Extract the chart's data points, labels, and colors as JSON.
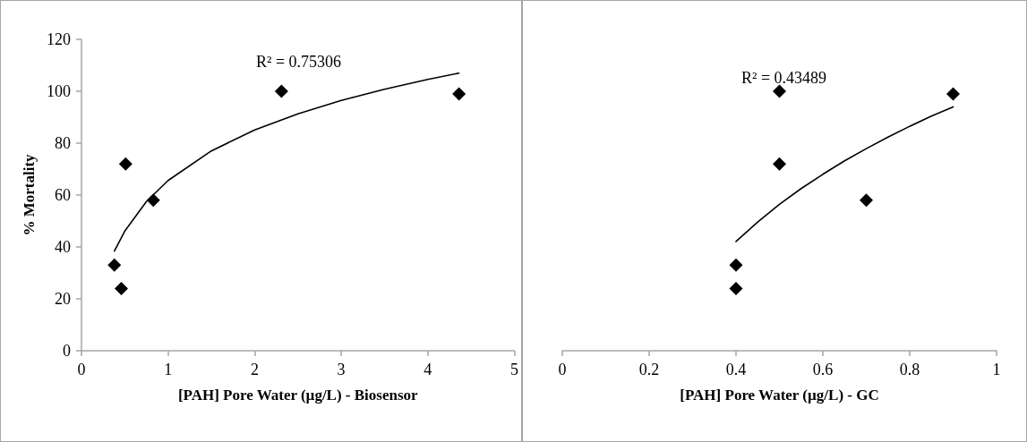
{
  "chart_data": [
    {
      "type": "scatter",
      "xlabel": "[PAH] Pore Water (µg/L) - Biosensor",
      "ylabel": "% Mortality",
      "xlim": [
        0,
        5
      ],
      "xticks": [
        0,
        1,
        2,
        3,
        4,
        5
      ],
      "ylim": [
        0,
        120
      ],
      "yticks": [
        0,
        20,
        40,
        60,
        80,
        100,
        120
      ],
      "marker": "diamond",
      "annotations": [
        "R² = 0.75306"
      ],
      "series": [
        {
          "type": "scatter",
          "color": "#000000",
          "x": [
            0.38,
            0.46,
            0.51,
            0.83,
            2.31,
            4.36
          ],
          "values": [
            33,
            24,
            72,
            58,
            100,
            99
          ]
        },
        {
          "type": "line",
          "color": "#000000",
          "marker": "none",
          "x": [
            0.38,
            0.5,
            0.75,
            1,
            1.5,
            2,
            2.5,
            3,
            3.5,
            4,
            4.36
          ],
          "values": [
            38.4,
            46.1,
            57.5,
            65.6,
            77.0,
            85.1,
            91.3,
            96.5,
            100.8,
            104.6,
            107.0
          ]
        }
      ]
    },
    {
      "type": "scatter",
      "xlabel": "[PAH] Pore Water (µg/L) - GC",
      "xlim": [
        0,
        1
      ],
      "xticks": [
        0,
        0.2,
        0.4,
        0.6,
        0.8,
        1
      ],
      "ylim": [
        0,
        120
      ],
      "tick_labels": "x",
      "marker": "diamond",
      "annotations": [
        "R² = 0.43489"
      ],
      "series": [
        {
          "type": "scatter",
          "color": "#000000",
          "x": [
            0.4,
            0.4,
            0.5,
            0.5,
            0.7,
            0.9
          ],
          "values": [
            33,
            24,
            72,
            100,
            58,
            99
          ]
        },
        {
          "type": "line",
          "color": "#000000",
          "marker": "none",
          "x": [
            0.4,
            0.45,
            0.5,
            0.55,
            0.6,
            0.65,
            0.7,
            0.75,
            0.8,
            0.85,
            0.9
          ],
          "values": [
            42.1,
            49.6,
            56.4,
            62.5,
            68.0,
            73.2,
            77.9,
            82.3,
            86.5,
            90.4,
            94.0
          ]
        }
      ]
    }
  ]
}
